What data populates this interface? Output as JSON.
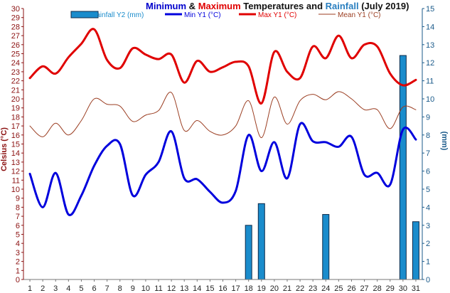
{
  "chart_data": {
    "type": "line",
    "title_parts": [
      {
        "text": "Minimum",
        "color": "#0000cc"
      },
      {
        "text": " & ",
        "color": "#111111"
      },
      {
        "text": "Maximum",
        "color": "#e00000"
      },
      {
        "text": " Temperatures and ",
        "color": "#111111"
      },
      {
        "text": "Rainfall",
        "color": "#2a7fc0"
      },
      {
        "text": " (July 2019)",
        "color": "#111111"
      }
    ],
    "ylabel_left": "Celsius (°C)",
    "ylabel_right": "(mm)",
    "x": [
      1,
      2,
      3,
      4,
      5,
      6,
      7,
      8,
      9,
      10,
      11,
      12,
      13,
      14,
      15,
      16,
      17,
      18,
      19,
      20,
      21,
      22,
      23,
      24,
      25,
      26,
      27,
      28,
      29,
      30,
      31
    ],
    "x_ticks": [
      "1",
      "2",
      "3",
      "4",
      "5",
      "6",
      "7",
      "8",
      "9",
      "10",
      "11",
      "12",
      "13",
      "14",
      "15",
      "16",
      "17",
      "18",
      "19",
      "20",
      "21",
      "22",
      "23",
      "24",
      "25",
      "26",
      "27",
      "28",
      "29",
      "30",
      "31"
    ],
    "ylim_left": [
      0,
      30
    ],
    "ylim_right": [
      0,
      15
    ],
    "y_ticks_left": [
      "0",
      "1",
      "2",
      "3",
      "4",
      "5",
      "6",
      "7",
      "8",
      "9",
      "10",
      "11",
      "12",
      "13",
      "14",
      "15",
      "16",
      "17",
      "18",
      "19",
      "20",
      "21",
      "22",
      "23",
      "24",
      "25",
      "26",
      "27",
      "28",
      "29",
      "30"
    ],
    "y_ticks_right": [
      "0",
      "1",
      "2",
      "3",
      "4",
      "5",
      "6",
      "7",
      "8",
      "9",
      "10",
      "11",
      "12",
      "13",
      "14",
      "15"
    ],
    "grid": false,
    "legend_position": "top",
    "series": [
      {
        "name": "Rainfall Y2 (mm)",
        "kind": "bar",
        "axis": "right",
        "color": "#1a8ccc",
        "stroke": "#0d2a4a",
        "values": [
          0,
          0,
          0,
          0,
          0,
          0,
          0,
          0,
          0,
          0,
          0,
          0,
          0,
          0,
          0,
          0,
          0,
          3.0,
          4.2,
          0,
          0,
          0,
          0,
          3.6,
          0,
          0,
          0,
          0,
          0,
          12.4,
          3.2
        ]
      },
      {
        "name": "Min Y1 (°C)",
        "kind": "line",
        "axis": "left",
        "color": "#0000dd",
        "width": 3,
        "values": [
          11.7,
          8.0,
          11.8,
          7.2,
          9.3,
          12.6,
          14.8,
          15.0,
          9.3,
          11.6,
          13.0,
          16.4,
          11.2,
          11.1,
          9.7,
          8.5,
          9.8,
          16.0,
          12.0,
          15.2,
          11.2,
          17.2,
          15.3,
          15.2,
          14.7,
          15.8,
          11.6,
          11.8,
          10.5,
          16.6,
          15.5
        ]
      },
      {
        "name": "Max Y1 (°C)",
        "kind": "line",
        "axis": "left",
        "color": "#e00000",
        "width": 3,
        "values": [
          22.3,
          23.6,
          22.8,
          24.6,
          26.1,
          27.7,
          24.3,
          23.4,
          25.6,
          24.9,
          24.4,
          24.9,
          21.8,
          24.2,
          23.0,
          23.5,
          24.1,
          23.6,
          19.5,
          25.2,
          23.0,
          22.3,
          25.8,
          24.5,
          27.0,
          24.5,
          26.0,
          25.8,
          22.8,
          21.5,
          22.1
        ]
      },
      {
        "name": "Mean Y1 (°C)",
        "kind": "line",
        "axis": "left",
        "color": "#9b3e22",
        "width": 1,
        "values": [
          17.0,
          15.8,
          17.3,
          16.0,
          17.6,
          20.0,
          19.4,
          19.2,
          17.5,
          18.2,
          18.7,
          20.7,
          16.5,
          17.6,
          16.4,
          16.0,
          17.0,
          19.8,
          15.7,
          20.2,
          17.2,
          19.8,
          20.5,
          19.9,
          20.8,
          20.0,
          18.8,
          18.8,
          16.7,
          19.1,
          18.8
        ]
      }
    ]
  }
}
